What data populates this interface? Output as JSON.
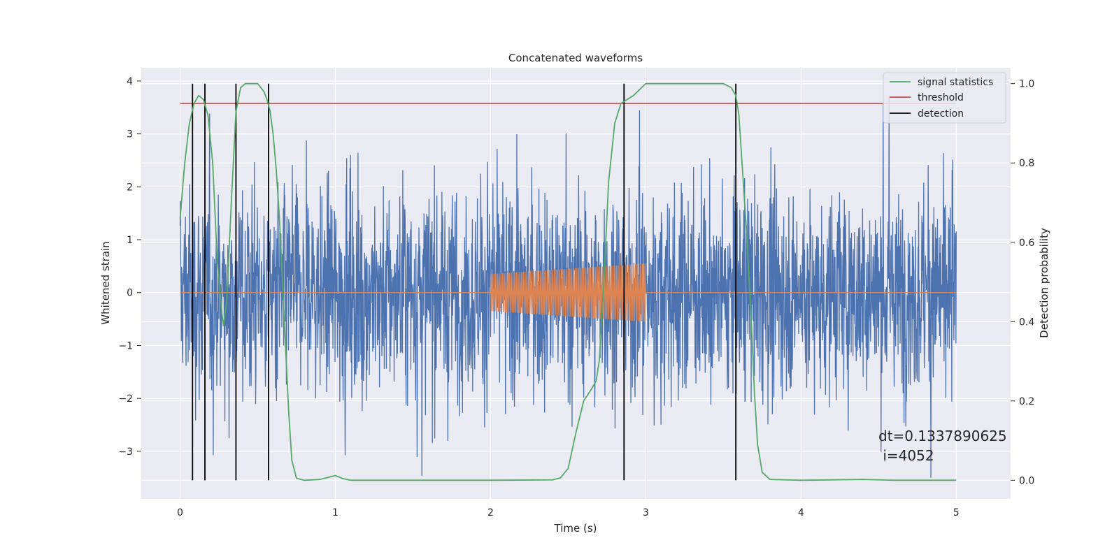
{
  "chart_data": {
    "type": "line",
    "title": "Concatenated waveforms",
    "xlabel": "Time (s)",
    "ylabel": "Whitened strain",
    "y2label": "Detection probability",
    "xlim": [
      -0.25,
      5.35
    ],
    "ylim": [
      -3.9,
      4.25
    ],
    "y2lim": [
      -0.047,
      1.04
    ],
    "xticks": [
      0,
      1,
      2,
      3,
      4,
      5
    ],
    "xtick_labels": [
      "0",
      "1",
      "2",
      "3",
      "4",
      "5"
    ],
    "yticks": [
      -3,
      -2,
      -1,
      0,
      1,
      2,
      3,
      4
    ],
    "ytick_labels": [
      "−3",
      "−2",
      "−1",
      "0",
      "1",
      "2",
      "3",
      "4"
    ],
    "y2ticks": [
      0.0,
      0.2,
      0.4,
      0.6,
      0.8,
      1.0
    ],
    "y2tick_labels": [
      "0.0",
      "0.2",
      "0.4",
      "0.6",
      "0.8",
      "1.0"
    ],
    "grid": true,
    "legend_position": "top-right",
    "colors": {
      "background": "#eaeaf2",
      "grid": "#ffffff",
      "strain": "#4c72b0",
      "injection": "#dd8452",
      "signal_statistics": "#55a868",
      "threshold": "#c44e52",
      "detection": "#000000"
    },
    "strain": {
      "t_start": 0,
      "t_end": 5,
      "amplitude_range": [
        -3.5,
        3.9
      ]
    },
    "injection": {
      "t_start": 2.0,
      "t_end": 3.0,
      "amplitude_start": 0.35,
      "amplitude_end": 0.55
    },
    "signal_statistics": {
      "x": [
        0.0,
        0.03,
        0.06,
        0.09,
        0.12,
        0.15,
        0.18,
        0.21,
        0.24,
        0.27,
        0.28,
        0.3,
        0.33,
        0.36,
        0.39,
        0.42,
        0.45,
        0.5,
        0.54,
        0.56,
        0.58,
        0.6,
        0.62,
        0.64,
        0.66,
        0.68,
        0.7,
        0.72,
        0.75,
        0.8,
        0.9,
        0.95,
        1.0,
        1.05,
        1.1,
        2.0,
        2.4,
        2.45,
        2.5,
        2.55,
        2.6,
        2.65,
        2.68,
        2.7,
        2.73,
        2.76,
        2.8,
        2.84,
        2.88,
        2.92,
        3.0,
        3.5,
        3.55,
        3.58,
        3.6,
        3.62,
        3.65,
        3.68,
        3.7,
        3.72,
        3.75,
        3.8,
        4.0,
        4.4,
        4.6,
        5.0
      ],
      "values": [
        0.66,
        0.8,
        0.9,
        0.95,
        0.97,
        0.96,
        0.92,
        0.8,
        0.55,
        0.42,
        0.39,
        0.45,
        0.7,
        0.93,
        0.99,
        1.0,
        1.0,
        1.0,
        0.98,
        0.96,
        0.93,
        0.87,
        0.78,
        0.66,
        0.5,
        0.33,
        0.17,
        0.05,
        0.005,
        0.0,
        0.002,
        0.007,
        0.012,
        0.004,
        0.0,
        0.0,
        0.001,
        0.006,
        0.03,
        0.12,
        0.2,
        0.23,
        0.25,
        0.3,
        0.5,
        0.75,
        0.9,
        0.95,
        0.96,
        0.97,
        1.0,
        1.0,
        0.99,
        0.97,
        0.92,
        0.8,
        0.62,
        0.4,
        0.22,
        0.09,
        0.02,
        0.002,
        0.0,
        0.002,
        0.0,
        0.0
      ]
    },
    "threshold": {
      "value": 0.95,
      "x_start": 0,
      "x_end": 5
    },
    "detections": [
      0.08,
      0.16,
      0.36,
      0.57,
      2.86,
      3.58
    ],
    "legend": [
      {
        "label": "signal statistics",
        "series": "signal_statistics"
      },
      {
        "label": "threshold",
        "series": "threshold"
      },
      {
        "label": "detection",
        "series": "detection"
      }
    ],
    "annotation": {
      "line1": "dt=0.1337890625",
      "line2": " i=4052"
    }
  }
}
